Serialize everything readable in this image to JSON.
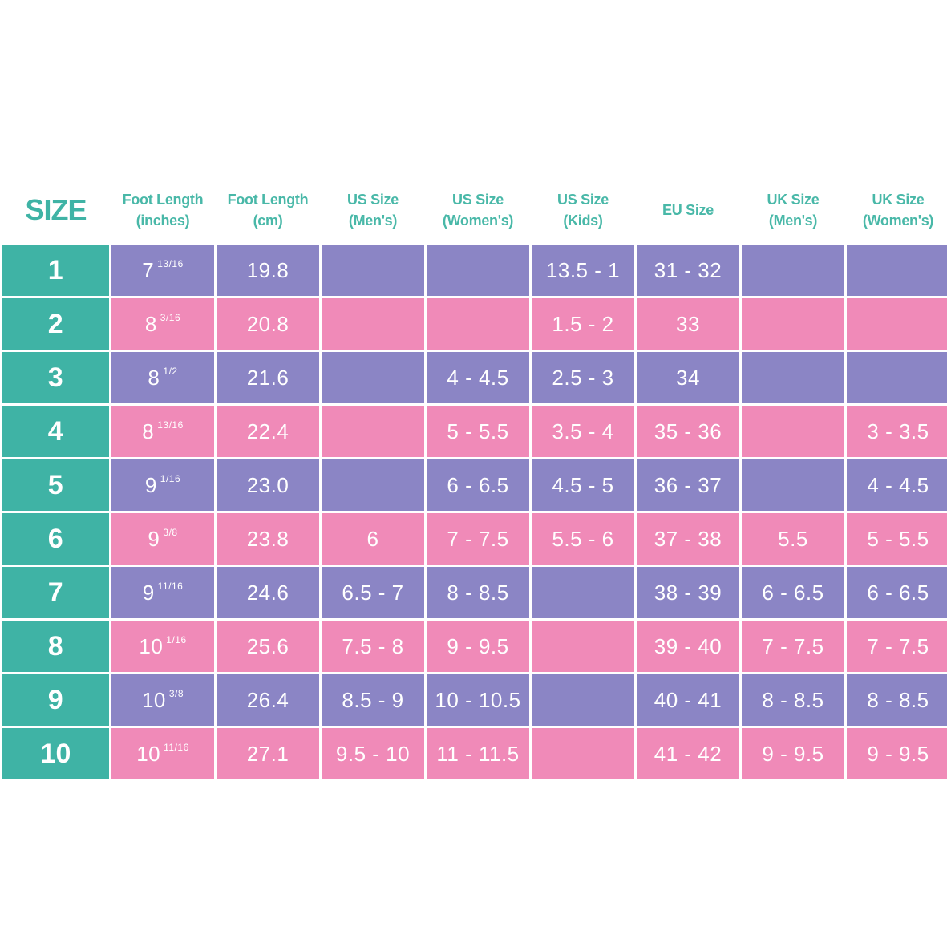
{
  "chart_data": {
    "type": "table",
    "colors": {
      "header_text": "#49b8a8",
      "size_column": "#3fb3a5",
      "odd_rows": "#8b85c5",
      "even_rows": "#f08ab8"
    },
    "columns": [
      {
        "line1": "SIZE",
        "line2": ""
      },
      {
        "line1": "Foot Length",
        "line2": "(inches)"
      },
      {
        "line1": "Foot Length",
        "line2": "(cm)"
      },
      {
        "line1": "US Size",
        "line2": "(Men's)"
      },
      {
        "line1": "US Size",
        "line2": "(Women's)"
      },
      {
        "line1": "US Size",
        "line2": "(Kids)"
      },
      {
        "line1": "EU Size",
        "line2": ""
      },
      {
        "line1": "UK Size",
        "line2": "(Men's)"
      },
      {
        "line1": "UK Size",
        "line2": "(Women's)"
      }
    ],
    "rows": [
      {
        "size": "1",
        "inches_whole": "7",
        "inches_frac": "13/16",
        "cm": "19.8",
        "us_men": "",
        "us_women": "",
        "us_kids": "13.5 - 1",
        "eu": "31 - 32",
        "uk_men": "",
        "uk_women": ""
      },
      {
        "size": "2",
        "inches_whole": "8",
        "inches_frac": "3/16",
        "cm": "20.8",
        "us_men": "",
        "us_women": "",
        "us_kids": "1.5 - 2",
        "eu": "33",
        "uk_men": "",
        "uk_women": ""
      },
      {
        "size": "3",
        "inches_whole": "8",
        "inches_frac": "1/2",
        "cm": "21.6",
        "us_men": "",
        "us_women": "4 - 4.5",
        "us_kids": "2.5 - 3",
        "eu": "34",
        "uk_men": "",
        "uk_women": ""
      },
      {
        "size": "4",
        "inches_whole": "8",
        "inches_frac": "13/16",
        "cm": "22.4",
        "us_men": "",
        "us_women": "5 - 5.5",
        "us_kids": "3.5 - 4",
        "eu": "35 - 36",
        "uk_men": "",
        "uk_women": "3 - 3.5"
      },
      {
        "size": "5",
        "inches_whole": "9",
        "inches_frac": "1/16",
        "cm": "23.0",
        "us_men": "",
        "us_women": "6 - 6.5",
        "us_kids": "4.5 - 5",
        "eu": "36 - 37",
        "uk_men": "",
        "uk_women": "4 - 4.5"
      },
      {
        "size": "6",
        "inches_whole": "9",
        "inches_frac": "3/8",
        "cm": "23.8",
        "us_men": "6",
        "us_women": "7 - 7.5",
        "us_kids": "5.5 - 6",
        "eu": "37 - 38",
        "uk_men": "5.5",
        "uk_women": "5 - 5.5"
      },
      {
        "size": "7",
        "inches_whole": "9",
        "inches_frac": "11/16",
        "cm": "24.6",
        "us_men": "6.5 - 7",
        "us_women": "8 - 8.5",
        "us_kids": "",
        "eu": "38 - 39",
        "uk_men": "6 - 6.5",
        "uk_women": "6 - 6.5"
      },
      {
        "size": "8",
        "inches_whole": "10",
        "inches_frac": "1/16",
        "cm": "25.6",
        "us_men": "7.5 - 8",
        "us_women": "9 - 9.5",
        "us_kids": "",
        "eu": "39 - 40",
        "uk_men": "7 - 7.5",
        "uk_women": "7 - 7.5"
      },
      {
        "size": "9",
        "inches_whole": "10",
        "inches_frac": "3/8",
        "cm": "26.4",
        "us_men": "8.5 - 9",
        "us_women": "10 - 10.5",
        "us_kids": "",
        "eu": "40 - 41",
        "uk_men": "8 - 8.5",
        "uk_women": "8 - 8.5"
      },
      {
        "size": "10",
        "inches_whole": "10",
        "inches_frac": "11/16",
        "cm": "27.1",
        "us_men": "9.5 - 10",
        "us_women": "11 - 11.5",
        "us_kids": "",
        "eu": "41 - 42",
        "uk_men": "9 - 9.5",
        "uk_women": "9 - 9.5"
      }
    ]
  }
}
